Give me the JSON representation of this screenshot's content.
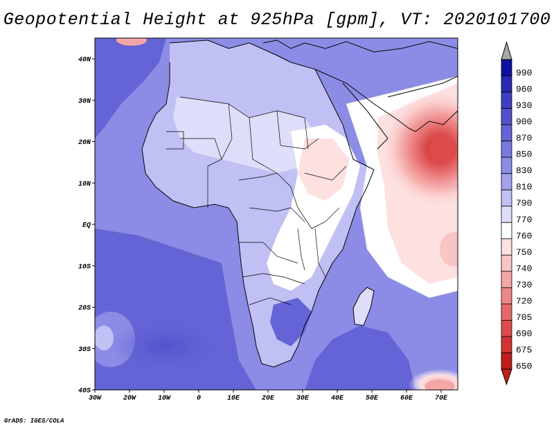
{
  "title": "Geopotential Height at 925hPa [gpm], VT: 2020101700",
  "credit": "GrADS: IGES/COLA",
  "axes": {
    "lon_labels": [
      "30W",
      "20W",
      "10W",
      "0",
      "10E",
      "20E",
      "30E",
      "40E",
      "50E",
      "60E",
      "70E"
    ],
    "lat_labels": [
      "40N",
      "30N",
      "20N",
      "10N",
      "EQ",
      "10S",
      "20S",
      "30S",
      "40S"
    ]
  },
  "colorbar": {
    "levels": [
      "990",
      "960",
      "930",
      "900",
      "870",
      "850",
      "830",
      "810",
      "790",
      "770",
      "760",
      "750",
      "740",
      "730",
      "720",
      "705",
      "690",
      "675",
      "650"
    ],
    "colors": [
      "#1010a0",
      "#2a2ab4",
      "#3f3fc2",
      "#5252cc",
      "#6464d6",
      "#7878de",
      "#8c8ce6",
      "#a2a2ee",
      "#c0c0f4",
      "#dedefa",
      "#ffffff",
      "#fde0e0",
      "#f9c4c4",
      "#f4a6a6",
      "#ee8888",
      "#e66a6a",
      "#dc4c4c",
      "#d03434",
      "#be1e1e"
    ],
    "top_arrow_color": "#a9a9a9",
    "bottom_arrow_color": "#be1e1e"
  },
  "fill_colors": {
    "ocean_deep": "#6464d6",
    "ocean_mid": "#8c8ce6",
    "land_light": "#c0c0f4",
    "land_pale": "#dedefa",
    "neutral": "#ffffff",
    "low_pale": "#fde0e0",
    "low_mid": "#f4a6a6",
    "low_core": "#dc4c4c"
  }
}
